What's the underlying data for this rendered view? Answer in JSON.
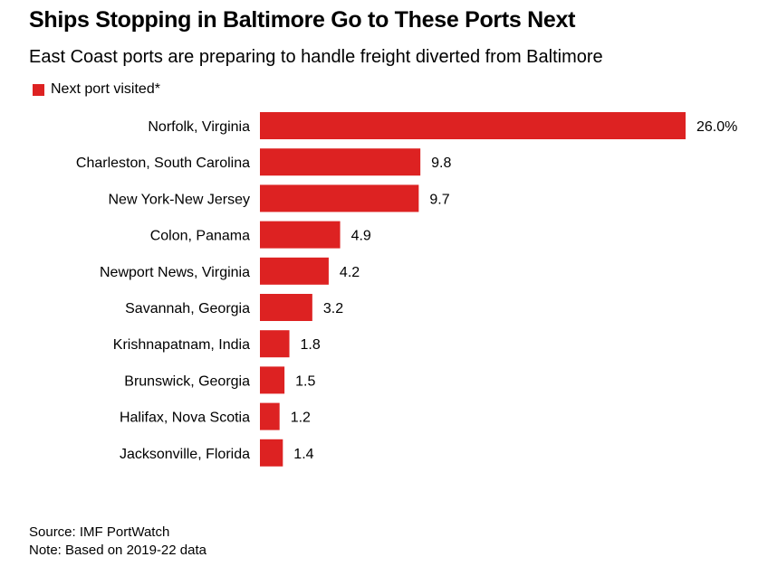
{
  "title": "Ships Stopping in Baltimore Go to These Ports Next",
  "subtitle": "East Coast ports are preparing to handle freight diverted from Baltimore",
  "source": "Source: IMF PortWatch",
  "note": "Note: Based on 2019-22 data",
  "colors": {
    "bar": "#dd2222"
  },
  "chart_data": {
    "type": "bar",
    "orientation": "horizontal",
    "title": "Ships Stopping in Baltimore Go to These Ports Next",
    "subtitle": "East Coast ports are preparing to handle freight diverted from Baltimore",
    "legend": [
      "Next port visited*"
    ],
    "legend_position": "top-left",
    "grid": false,
    "xlim": [
      0,
      26
    ],
    "categories": [
      "Norfolk, Virginia",
      "Charleston, South Carolina",
      "New York-New Jersey",
      "Colon, Panama",
      "Newport News, Virginia",
      "Savannah, Georgia",
      "Krishnapatnam, India",
      "Brunswick, Georgia",
      "Halifax, Nova Scotia",
      "Jacksonville, Florida"
    ],
    "series": [
      {
        "name": "Next port visited*",
        "values": [
          26.0,
          9.8,
          9.7,
          4.9,
          4.2,
          3.2,
          1.8,
          1.5,
          1.2,
          1.4
        ],
        "labels": [
          "26.0%",
          "9.8",
          "9.7",
          "4.9",
          "4.2",
          "3.2",
          "1.8",
          "1.5",
          "1.2",
          "1.4"
        ]
      }
    ]
  }
}
